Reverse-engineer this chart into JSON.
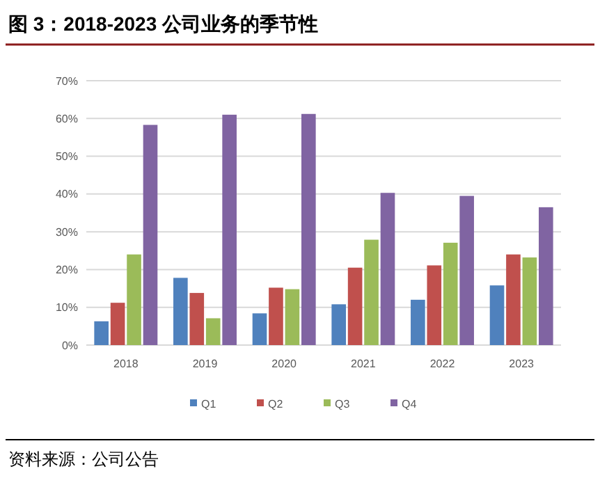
{
  "chart_data": {
    "type": "bar",
    "title": "图 3：2018-2023 公司业务的季节性",
    "categories": [
      "2018",
      "2019",
      "2020",
      "2021",
      "2022",
      "2023"
    ],
    "series": [
      {
        "name": "Q1",
        "color": "#4f81bd",
        "values": [
          6.3,
          17.8,
          8.4,
          10.8,
          12,
          15.8
        ]
      },
      {
        "name": "Q2",
        "color": "#c0504d",
        "values": [
          11.2,
          13.8,
          15.2,
          20.5,
          21.1,
          24
        ]
      },
      {
        "name": "Q3",
        "color": "#9bbb59",
        "values": [
          24,
          7.1,
          14.8,
          27.9,
          27.1,
          23.2
        ]
      },
      {
        "name": "Q4",
        "color": "#8064a2",
        "values": [
          58.3,
          61,
          61.2,
          40.3,
          39.5,
          36.5
        ]
      }
    ],
    "ylim": [
      0,
      70
    ],
    "yticks": [
      {
        "value": 0,
        "label": "0%"
      },
      {
        "value": 10,
        "label": "10%"
      },
      {
        "value": 20,
        "label": "20%"
      },
      {
        "value": 30,
        "label": "30%"
      },
      {
        "value": 40,
        "label": "40%"
      },
      {
        "value": 50,
        "label": "50%"
      },
      {
        "value": 60,
        "label": "60%"
      },
      {
        "value": 70,
        "label": "70%"
      }
    ],
    "grid": "y",
    "legend": "bottom",
    "annotations": [
      "资料来源：公司公告"
    ]
  }
}
